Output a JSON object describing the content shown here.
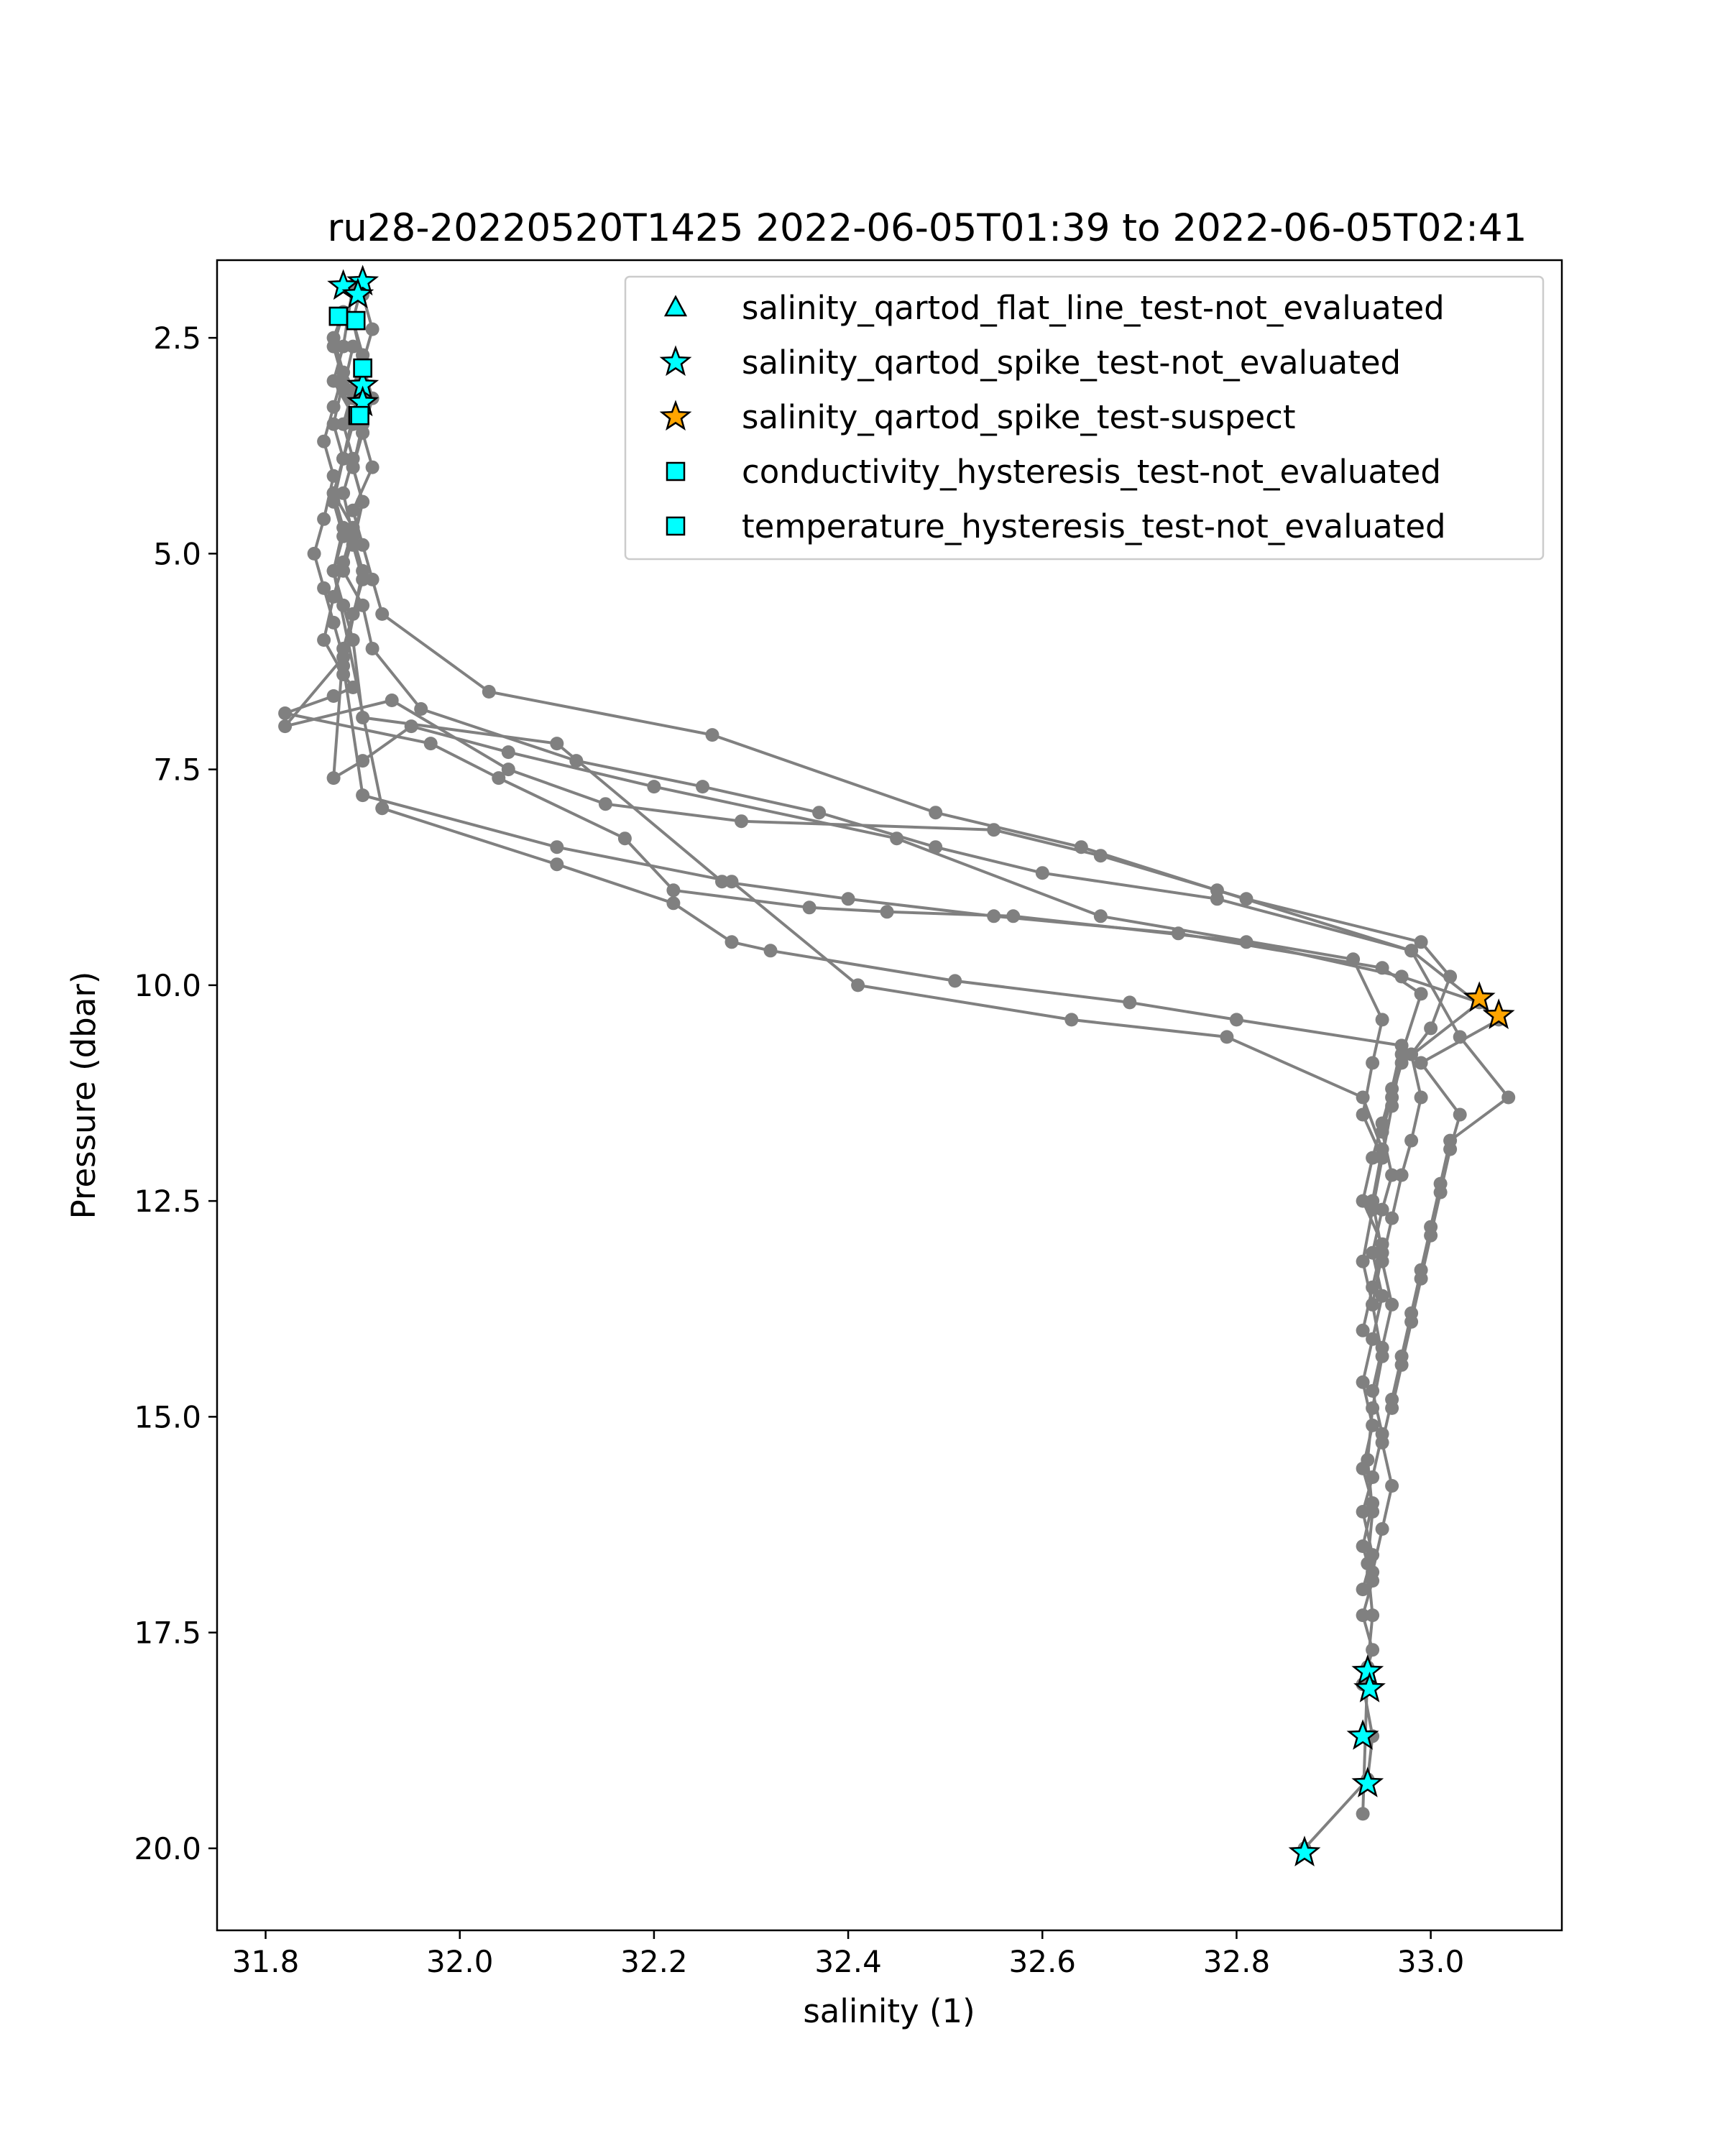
{
  "chart_data": {
    "type": "scatter",
    "title": "ru28-20220520T1425 2022-06-05T01:39 to 2022-06-05T02:41",
    "xlabel": "salinity (1)",
    "ylabel": "Pressure (dbar)",
    "xlim": [
      31.75,
      33.135
    ],
    "ylim": [
      20.95,
      1.6
    ],
    "y_inverted": true,
    "grid": false,
    "legend_position": "upper-right",
    "xticks": [
      31.8,
      32.0,
      32.2,
      32.4,
      32.6,
      32.8,
      33.0
    ],
    "xtick_labels": [
      "31.8",
      "32.0",
      "32.2",
      "32.4",
      "32.6",
      "32.8",
      "33.0"
    ],
    "yticks": [
      2.5,
      5.0,
      7.5,
      10.0,
      12.5,
      15.0,
      17.5,
      20.0
    ],
    "ytick_labels": [
      "2.5",
      "5.0",
      "7.5",
      "10.0",
      "12.5",
      "15.0",
      "17.5",
      "20.0"
    ],
    "profile_color": "#808080",
    "profiles": [
      {
        "x": [
          31.89,
          31.88,
          31.87,
          31.89,
          31.88,
          31.87,
          31.89,
          31.88,
          31.87,
          31.86,
          31.88,
          31.89,
          31.87,
          31.82,
          31.97,
          32.04,
          32.17,
          32.22,
          32.36,
          32.44,
          32.57,
          32.81,
          32.97,
          33.05,
          32.97,
          32.96,
          32.95,
          32.96,
          32.95,
          32.94,
          32.95,
          32.94,
          32.93,
          32.94,
          32.93,
          32.94,
          32.93,
          32.94,
          32.93,
          32.94,
          32.93,
          32.94,
          32.935,
          32.87
        ],
        "y": [
          1.9,
          2.6,
          3.0,
          3.4,
          3.9,
          4.3,
          4.7,
          5.1,
          5.5,
          6.0,
          6.4,
          6.55,
          6.65,
          6.85,
          7.2,
          7.6,
          8.3,
          8.9,
          9.1,
          9.15,
          9.2,
          9.5,
          9.9,
          10.2,
          10.9,
          11.3,
          11.7,
          12.2,
          12.6,
          13.1,
          13.6,
          14.1,
          14.6,
          15.1,
          15.6,
          16.0,
          16.5,
          16.9,
          17.3,
          17.7,
          18.1,
          18.7,
          19.2,
          20.0
        ]
      },
      {
        "x": [
          31.88,
          31.87,
          31.88,
          31.87,
          31.86,
          31.87,
          31.86,
          31.85,
          31.86,
          31.87,
          31.88,
          31.82,
          31.93,
          32.05,
          32.15,
          32.29,
          32.55,
          32.66,
          32.81,
          32.99,
          33.02,
          33.0,
          32.98,
          32.99,
          32.98,
          32.97,
          32.96,
          32.95,
          32.96,
          32.95,
          32.94,
          32.95,
          32.94,
          32.93,
          32.94,
          32.93
        ],
        "y": [
          2.2,
          2.5,
          2.9,
          3.3,
          3.7,
          4.1,
          4.6,
          5.0,
          5.4,
          5.8,
          6.2,
          7.0,
          6.7,
          7.5,
          7.9,
          8.1,
          8.2,
          8.5,
          9.0,
          9.5,
          9.9,
          10.5,
          10.8,
          11.3,
          11.8,
          12.2,
          12.7,
          13.2,
          13.7,
          14.2,
          14.7,
          15.2,
          15.7,
          16.1,
          16.6,
          17.0
        ]
      },
      {
        "x": [
          31.9,
          31.89,
          31.9,
          31.89,
          31.88,
          31.89,
          31.88,
          31.89,
          31.88,
          31.9,
          31.91,
          31.96,
          32.12,
          32.25,
          32.37,
          32.49,
          32.6,
          32.78,
          32.98,
          33.03,
          33.08,
          33.02,
          33.01,
          33.0,
          32.99,
          32.98,
          32.97,
          32.96,
          32.95,
          32.96,
          32.95,
          32.94
        ],
        "y": [
          1.85,
          2.3,
          2.7,
          3.1,
          3.5,
          3.9,
          4.3,
          4.8,
          5.2,
          5.6,
          6.1,
          6.8,
          7.4,
          7.7,
          8.0,
          8.4,
          8.7,
          9.0,
          9.6,
          10.6,
          11.3,
          11.8,
          12.3,
          12.8,
          13.3,
          13.8,
          14.3,
          14.8,
          15.3,
          15.8,
          16.3,
          16.8
        ]
      },
      {
        "x": [
          31.9,
          31.91,
          31.9,
          31.91,
          31.9,
          31.91,
          31.89,
          31.9,
          31.91,
          31.92,
          32.03,
          32.26,
          32.49,
          32.64,
          32.78,
          32.98,
          33.07,
          32.99,
          33.03,
          33.02,
          33.01,
          33.0,
          32.99,
          32.98,
          32.97,
          32.96
        ],
        "y": [
          2.0,
          2.4,
          2.8,
          3.2,
          3.6,
          4.0,
          4.5,
          4.9,
          5.3,
          5.7,
          6.6,
          7.1,
          8.0,
          8.4,
          8.9,
          9.6,
          10.4,
          10.9,
          11.5,
          11.9,
          12.4,
          12.9,
          13.4,
          13.9,
          14.4,
          14.9
        ]
      },
      {
        "x": [
          31.89,
          31.9,
          31.89,
          31.9,
          31.89,
          31.9,
          31.89,
          31.9,
          31.89,
          31.88,
          31.87,
          31.9,
          31.95,
          32.05,
          32.2,
          32.45,
          32.66,
          32.92,
          32.95,
          32.94,
          32.93,
          32.95,
          32.94
        ],
        "y": [
          2.3,
          2.8,
          3.2,
          3.6,
          4.0,
          4.4,
          4.9,
          5.3,
          5.7,
          6.1,
          7.6,
          7.4,
          7.0,
          7.3,
          7.7,
          8.3,
          9.2,
          9.7,
          10.4,
          10.9,
          11.5,
          12.0,
          12.5
        ]
      },
      {
        "x": [
          31.88,
          31.87,
          31.88,
          31.87,
          31.88,
          31.87,
          31.88,
          31.87,
          31.88,
          31.89,
          31.9,
          32.1,
          32.27,
          32.4,
          32.55,
          32.74,
          32.95,
          32.99,
          32.97,
          32.96,
          32.95,
          32.94,
          32.93,
          32.94
        ],
        "y": [
          2.2,
          2.6,
          3.0,
          3.5,
          3.9,
          4.3,
          4.7,
          5.2,
          5.6,
          6.0,
          6.9,
          7.2,
          8.8,
          9.0,
          9.2,
          9.4,
          9.8,
          10.1,
          10.8,
          11.4,
          12.0,
          12.6,
          13.2,
          13.7
        ]
      },
      {
        "x": [
          31.89,
          31.88,
          31.89,
          31.88,
          31.87,
          31.88,
          31.87,
          31.92,
          32.1,
          32.22,
          32.28,
          32.32,
          32.51,
          32.69,
          32.8,
          32.97,
          32.96,
          32.95,
          32.94,
          32.93,
          32.95,
          32.94,
          32.93
        ],
        "y": [
          2.6,
          3.1,
          3.5,
          3.9,
          4.4,
          4.8,
          5.2,
          7.95,
          8.6,
          9.05,
          9.5,
          9.6,
          9.95,
          10.2,
          10.4,
          10.7,
          11.2,
          11.6,
          12.0,
          12.5,
          13.0,
          13.5,
          14.0
        ]
      },
      {
        "x": [
          31.9,
          31.89,
          31.9,
          31.89,
          31.9,
          31.89,
          31.9,
          31.88,
          31.9,
          32.1,
          32.28,
          32.41,
          32.63,
          32.79,
          32.93,
          32.95,
          32.94,
          32.95,
          32.94,
          32.95,
          32.94,
          32.935,
          32.94,
          32.935,
          32.94,
          32.935,
          32.93
        ],
        "y": [
          2.7,
          3.1,
          3.5,
          4.0,
          4.4,
          4.8,
          5.2,
          6.3,
          7.8,
          8.4,
          8.8,
          10.0,
          10.4,
          10.6,
          11.3,
          11.9,
          12.5,
          13.1,
          13.7,
          14.3,
          14.9,
          15.5,
          16.1,
          16.7,
          17.3,
          17.9,
          19.6
        ]
      }
    ],
    "flag_points": [
      {
        "series": "salinity_qartod_spike_test-not_evaluated",
        "x": 31.9,
        "y": 1.85
      },
      {
        "series": "salinity_qartod_spike_test-not_evaluated",
        "x": 31.88,
        "y": 1.9
      },
      {
        "series": "salinity_qartod_spike_test-not_evaluated",
        "x": 31.895,
        "y": 2.0
      },
      {
        "series": "salinity_qartod_spike_test-not_evaluated",
        "x": 31.9,
        "y": 3.05
      },
      {
        "series": "salinity_qartod_spike_test-not_evaluated",
        "x": 31.9,
        "y": 3.25
      },
      {
        "series": "salinity_qartod_spike_test-not_evaluated",
        "x": 32.935,
        "y": 17.95
      },
      {
        "series": "salinity_qartod_spike_test-not_evaluated",
        "x": 32.937,
        "y": 18.15
      },
      {
        "series": "salinity_qartod_spike_test-not_evaluated",
        "x": 32.93,
        "y": 18.7
      },
      {
        "series": "salinity_qartod_spike_test-not_evaluated",
        "x": 32.935,
        "y": 19.25
      },
      {
        "series": "salinity_qartod_spike_test-not_evaluated",
        "x": 32.87,
        "y": 20.05
      },
      {
        "series": "salinity_qartod_spike_test-suspect",
        "x": 33.05,
        "y": 10.15
      },
      {
        "series": "salinity_qartod_spike_test-suspect",
        "x": 33.07,
        "y": 10.35
      },
      {
        "series": "conductivity_hysteresis_test-not_evaluated",
        "x": 31.875,
        "y": 2.25
      },
      {
        "series": "conductivity_hysteresis_test-not_evaluated",
        "x": 31.893,
        "y": 2.3
      },
      {
        "series": "conductivity_hysteresis_test-not_evaluated",
        "x": 31.9,
        "y": 2.85
      },
      {
        "series": "conductivity_hysteresis_test-not_evaluated",
        "x": 31.895,
        "y": 3.4
      },
      {
        "series": "temperature_hysteresis_test-not_evaluated",
        "x": 31.875,
        "y": 2.25
      },
      {
        "series": "temperature_hysteresis_test-not_evaluated",
        "x": 31.893,
        "y": 2.3
      },
      {
        "series": "temperature_hysteresis_test-not_evaluated",
        "x": 31.9,
        "y": 2.85
      },
      {
        "series": "temperature_hysteresis_test-not_evaluated",
        "x": 31.897,
        "y": 3.4
      }
    ],
    "legend": [
      {
        "name": "salinity_qartod_flat_line_test-not_evaluated",
        "marker": "triangle",
        "color": "#00FFFF"
      },
      {
        "name": "salinity_qartod_spike_test-not_evaluated",
        "marker": "star",
        "color": "#00FFFF"
      },
      {
        "name": "salinity_qartod_spike_test-suspect",
        "marker": "star",
        "color": "#FFA500"
      },
      {
        "name": "conductivity_hysteresis_test-not_evaluated",
        "marker": "square",
        "color": "#00FFFF"
      },
      {
        "name": "temperature_hysteresis_test-not_evaluated",
        "marker": "square",
        "color": "#00FFFF"
      }
    ]
  }
}
